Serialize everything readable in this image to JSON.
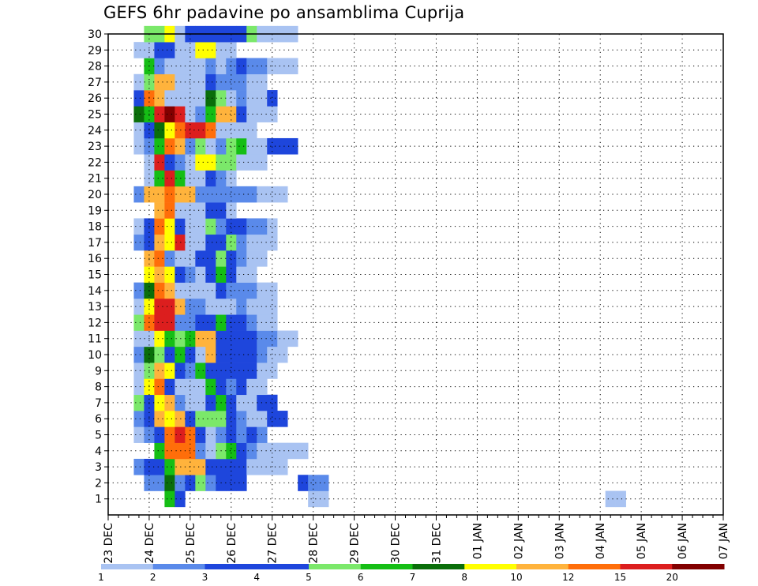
{
  "chart_data": {
    "type": "heatmap",
    "title": "GEFS 6hr padavine po ansamblima Cuprija",
    "xlabel": "",
    "ylabel": "",
    "x_start": "23 DEC 00Z",
    "x_step_hours": 6,
    "x_steps": 60,
    "x_ticks": [
      "23 DEC",
      "24 DEC",
      "25 DEC",
      "26 DEC",
      "27 DEC",
      "28 DEC",
      "29 DEC",
      "30 DEC",
      "31 DEC",
      "01 JAN",
      "02 JAN",
      "03 JAN",
      "04 JAN",
      "05 JAN",
      "06 JAN",
      "07 JAN"
    ],
    "y_ticks": [
      1,
      2,
      3,
      4,
      5,
      6,
      7,
      8,
      9,
      10,
      11,
      12,
      13,
      14,
      15,
      16,
      17,
      18,
      19,
      20,
      21,
      22,
      23,
      24,
      25,
      26,
      27,
      28,
      29,
      30
    ],
    "ylim": [
      0,
      30
    ],
    "grid": true,
    "legend": {
      "position": "bottom",
      "labels": [
        "1",
        "2",
        "3",
        "4",
        "5",
        "6",
        "7",
        "8",
        "10",
        "12",
        "15",
        "20"
      ],
      "colors": [
        "#a9c3f2",
        "#5a8aea",
        "#1e46dc",
        "#1e46dc",
        "#7be86a",
        "#15be15",
        "#0a6e0a",
        "#ffff00",
        "#ffb33c",
        "#ff6e0a",
        "#dc1e1e",
        "#820000"
      ]
    },
    "members": {
      "1": {
        "6": 6,
        "7": 3,
        "20": 1,
        "21": 1,
        "49": 1,
        "50": 1
      },
      "2": {
        "4": 2,
        "5": 2,
        "6": 7,
        "7": 2,
        "8": 3,
        "9": 5,
        "10": 2,
        "11": 3,
        "12": 3,
        "13": 3,
        "19": 3,
        "20": 2,
        "21": 2
      },
      "3": {
        "3": 2,
        "4": 3,
        "5": 4,
        "6": 6,
        "7": 10,
        "8": 11,
        "9": 10,
        "10": 4,
        "11": 3,
        "12": 4,
        "13": 4,
        "14": 1,
        "15": 1,
        "16": 1,
        "17": 1
      },
      "4": {
        "5": 6,
        "6": 12,
        "7": 13,
        "8": 12,
        "9": 2,
        "10": 1,
        "11": 5,
        "12": 6,
        "13": 4,
        "14": 2,
        "15": 1,
        "16": 1,
        "17": 1,
        "18": 1,
        "19": 1
      },
      "5": {
        "3": 1,
        "4": 2,
        "5": 4,
        "6": 13,
        "7": 15,
        "8": 12,
        "9": 3,
        "10": 1,
        "11": 2,
        "12": 3,
        "13": 2,
        "14": 3,
        "15": 2
      },
      "6": {
        "3": 2,
        "4": 3,
        "5": 11,
        "6": 9,
        "7": 10,
        "8": 4,
        "9": 5,
        "10": 5,
        "11": 5,
        "12": 4,
        "13": 2,
        "14": 1,
        "15": 1,
        "16": 3,
        "17": 3
      },
      "7": {
        "3": 5,
        "4": 3,
        "5": 9,
        "6": 11,
        "7": 2,
        "8": 1,
        "9": 1,
        "10": 3,
        "11": 6,
        "12": 3,
        "13": 1,
        "14": 1,
        "15": 3,
        "16": 3
      },
      "8": {
        "3": 1,
        "4": 9,
        "5": 12,
        "6": 3,
        "7": 1,
        "8": 1,
        "9": 1,
        "10": 6,
        "11": 3,
        "12": 2,
        "13": 4,
        "14": 1,
        "15": 1
      },
      "9": {
        "3": 1,
        "4": 5,
        "5": 10,
        "6": 8,
        "7": 3,
        "8": 2,
        "9": 6,
        "10": 3,
        "11": 4,
        "12": 4,
        "13": 3,
        "14": 3,
        "15": 1,
        "16": 1
      },
      "10": {
        "3": 2,
        "4": 7,
        "5": 5,
        "6": 3,
        "7": 6,
        "8": 3,
        "9": 1,
        "10": 10,
        "11": 4,
        "12": 3,
        "13": 4,
        "14": 4,
        "15": 2,
        "16": 1,
        "17": 1
      },
      "11": {
        "3": 1,
        "4": 1,
        "5": 8,
        "6": 6,
        "7": 5,
        "8": 6,
        "9": 11,
        "10": 11,
        "11": 4,
        "12": 3,
        "13": 4,
        "14": 4,
        "15": 2,
        "16": 2,
        "17": 1,
        "18": 1
      },
      "12": {
        "3": 5,
        "4": 12,
        "5": 15,
        "6": 15,
        "7": 2,
        "8": 2,
        "9": 3,
        "10": 3,
        "11": 6,
        "12": 4,
        "13": 3,
        "14": 2,
        "15": 1,
        "16": 1
      },
      "13": {
        "3": 1,
        "4": 8,
        "5": 15,
        "6": 15,
        "7": 11,
        "8": 2,
        "9": 2,
        "10": 1,
        "11": 1,
        "12": 1,
        "13": 2,
        "14": 1,
        "15": 1,
        "16": 1
      },
      "14": {
        "3": 2,
        "4": 7,
        "5": 13,
        "6": 11,
        "7": 1,
        "8": 1,
        "9": 1,
        "10": 1,
        "11": 3,
        "12": 2,
        "13": 2,
        "14": 2,
        "15": 1,
        "16": 1
      },
      "15": {
        "4": 9,
        "5": 11,
        "6": 8,
        "7": 3,
        "8": 2,
        "9": 1,
        "10": 3,
        "11": 6,
        "12": 3,
        "13": 1,
        "14": 1
      },
      "16": {
        "4": 10,
        "5": 12,
        "6": 2,
        "7": 1,
        "8": 1,
        "9": 4,
        "10": 4,
        "11": 5,
        "12": 3,
        "13": 2,
        "14": 1,
        "15": 1
      },
      "17": {
        "3": 2,
        "4": 3,
        "5": 10,
        "6": 9,
        "7": 15,
        "8": 1,
        "9": 1,
        "10": 4,
        "11": 4,
        "12": 5,
        "13": 2,
        "14": 1,
        "15": 1,
        "16": 1
      },
      "18": {
        "3": 1,
        "4": 3,
        "5": 12,
        "6": 9,
        "7": 3,
        "8": 1,
        "9": 1,
        "10": 5,
        "11": 2,
        "12": 3,
        "13": 3,
        "14": 2,
        "15": 2,
        "16": 1
      },
      "19": {
        "5": 10,
        "6": 12,
        "7": 1,
        "8": 1,
        "9": 1,
        "10": 3,
        "11": 3,
        "12": 1
      },
      "20": {
        "3": 2,
        "4": 10,
        "5": 10,
        "6": 12,
        "7": 11,
        "8": 10,
        "9": 2,
        "10": 2,
        "11": 2,
        "12": 2,
        "13": 2,
        "14": 2,
        "15": 1,
        "16": 1,
        "17": 1
      },
      "21": {
        "4": 1,
        "5": 6,
        "6": 15,
        "7": 6,
        "8": 1,
        "9": 1,
        "10": 3,
        "11": 2,
        "12": 1
      },
      "22": {
        "4": 1,
        "5": 15,
        "6": 3,
        "7": 2,
        "8": 1,
        "9": 8,
        "10": 8,
        "11": 5,
        "12": 5,
        "13": 1,
        "14": 1,
        "15": 1
      },
      "23": {
        "3": 1,
        "4": 2,
        "5": 6,
        "6": 14,
        "7": 11,
        "8": 2,
        "9": 5,
        "10": 1,
        "11": 2,
        "12": 5,
        "13": 6,
        "14": 1,
        "15": 1,
        "16": 3,
        "17": 3,
        "18": 3
      },
      "24": {
        "3": 1,
        "4": 3,
        "5": 7,
        "6": 8,
        "7": 13,
        "8": 15,
        "9": 15,
        "10": 12,
        "11": 1,
        "12": 1,
        "13": 1,
        "14": 1
      },
      "25": {
        "3": 7,
        "4": 6,
        "5": 15,
        "6": 20,
        "7": 15,
        "8": 1,
        "9": 2,
        "10": 6,
        "11": 10,
        "12": 11,
        "13": 3,
        "14": 1,
        "15": 1,
        "16": 1
      },
      "26": {
        "3": 3,
        "4": 12,
        "5": 10,
        "6": 1,
        "7": 1,
        "8": 1,
        "9": 1,
        "10": 7,
        "11": 5,
        "12": 1,
        "13": 2,
        "14": 1,
        "15": 1,
        "16": 3
      },
      "27": {
        "3": 1,
        "4": 5,
        "5": 10,
        "6": 11,
        "7": 1,
        "8": 1,
        "9": 1,
        "10": 3,
        "11": 2,
        "12": 2,
        "13": 2,
        "14": 1,
        "15": 1
      },
      "28": {
        "4": 6,
        "5": 2,
        "6": 1,
        "7": 1,
        "8": 1,
        "9": 1,
        "10": 2,
        "11": 1,
        "12": 2,
        "13": 3,
        "14": 2,
        "15": 2,
        "16": 1,
        "17": 1,
        "18": 1
      },
      "29": {
        "3": 1,
        "4": 1,
        "5": 3,
        "6": 3,
        "7": 1,
        "8": 1,
        "9": 8,
        "10": 8,
        "11": 1,
        "12": 1
      },
      "30": {
        "4": 5,
        "5": 5,
        "6": 8,
        "7": 1,
        "8": 3,
        "9": 3,
        "10": 3,
        "11": 3,
        "12": 3,
        "13": 3,
        "14": 5,
        "15": 1,
        "16": 1,
        "17": 1,
        "18": 1
      }
    }
  }
}
